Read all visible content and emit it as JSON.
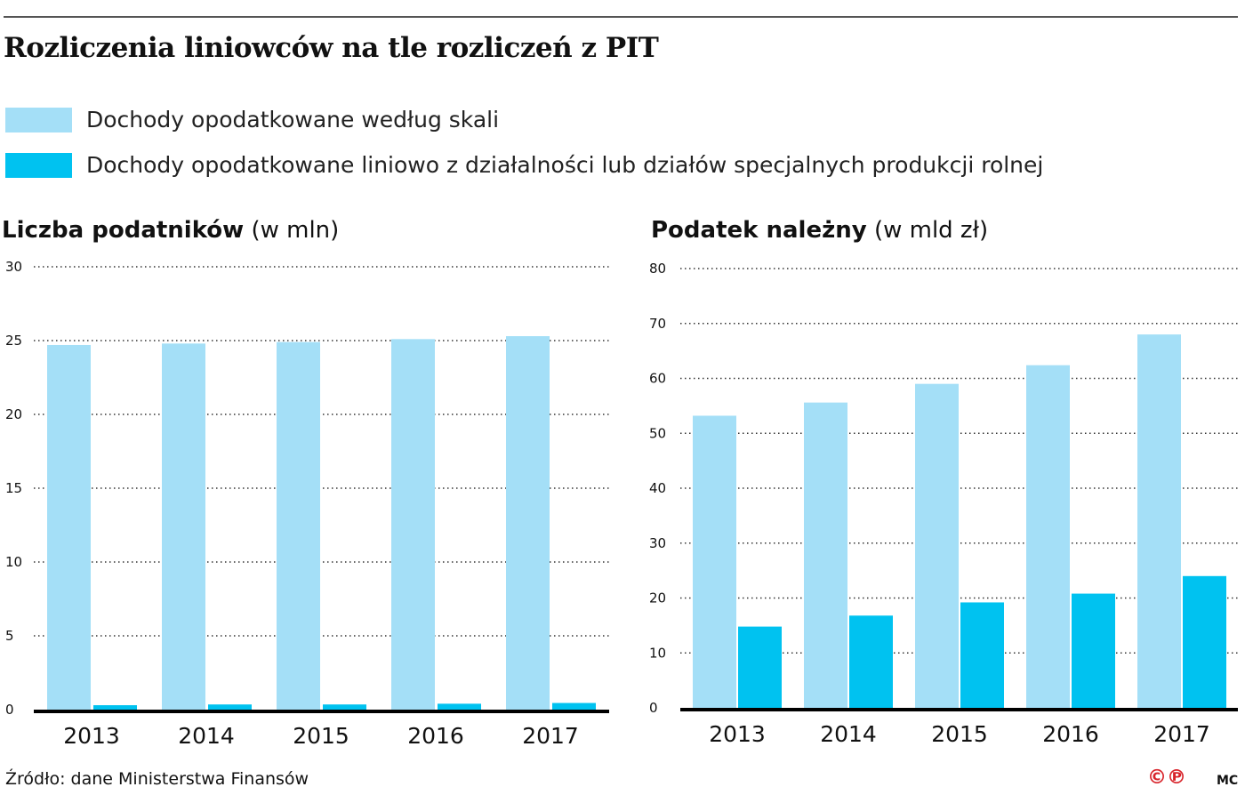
{
  "title": "Rozliczenia liniowców na tle rozliczeń z PIT",
  "legend": [
    {
      "label": "Dochody opodatkowane według skali",
      "color": "#a4dff7"
    },
    {
      "label": "Dochody opodatkowane liniowo z działalności lub działów specjalnych produkcji rolnej",
      "color": "#00c2f0"
    }
  ],
  "chart_data": [
    {
      "type": "bar",
      "title_bold": "Liczba podatników",
      "title_unit": "(w mln)",
      "categories": [
        "2013",
        "2014",
        "2015",
        "2016",
        "2017"
      ],
      "ylim": [
        0,
        30
      ],
      "yticks": [
        0,
        5,
        10,
        15,
        20,
        25,
        30
      ],
      "grid": true,
      "series": [
        {
          "name": "Dochody opodatkowane według skali",
          "color": "#a4dff7",
          "values": [
            24.7,
            24.8,
            24.9,
            25.1,
            25.3
          ]
        },
        {
          "name": "Dochody opodatkowane liniowo z działalności lub działów specjalnych produkcji rolnej",
          "color": "#00c2f0",
          "values": [
            0.3,
            0.35,
            0.35,
            0.4,
            0.45
          ]
        }
      ]
    },
    {
      "type": "bar",
      "title_bold": "Podatek należny",
      "title_unit": "(w mld zł)",
      "categories": [
        "2013",
        "2014",
        "2015",
        "2016",
        "2017"
      ],
      "ylim": [
        0,
        80
      ],
      "yticks": [
        0,
        10,
        20,
        30,
        40,
        50,
        60,
        70,
        80
      ],
      "grid": true,
      "series": [
        {
          "name": "Dochody opodatkowane według skali",
          "color": "#a4dff7",
          "values": [
            53.2,
            55.6,
            59.0,
            62.4,
            68.0
          ]
        },
        {
          "name": "Dochody opodatkowane liniowo z działalności lub działów specjalnych produkcji rolnej",
          "color": "#00c2f0",
          "values": [
            14.8,
            16.8,
            19.2,
            20.8,
            24.0
          ]
        }
      ]
    }
  ],
  "footer": {
    "source": "Źródło: dane Ministerstwa Finansów",
    "logo": "©℗",
    "author": "MC"
  }
}
